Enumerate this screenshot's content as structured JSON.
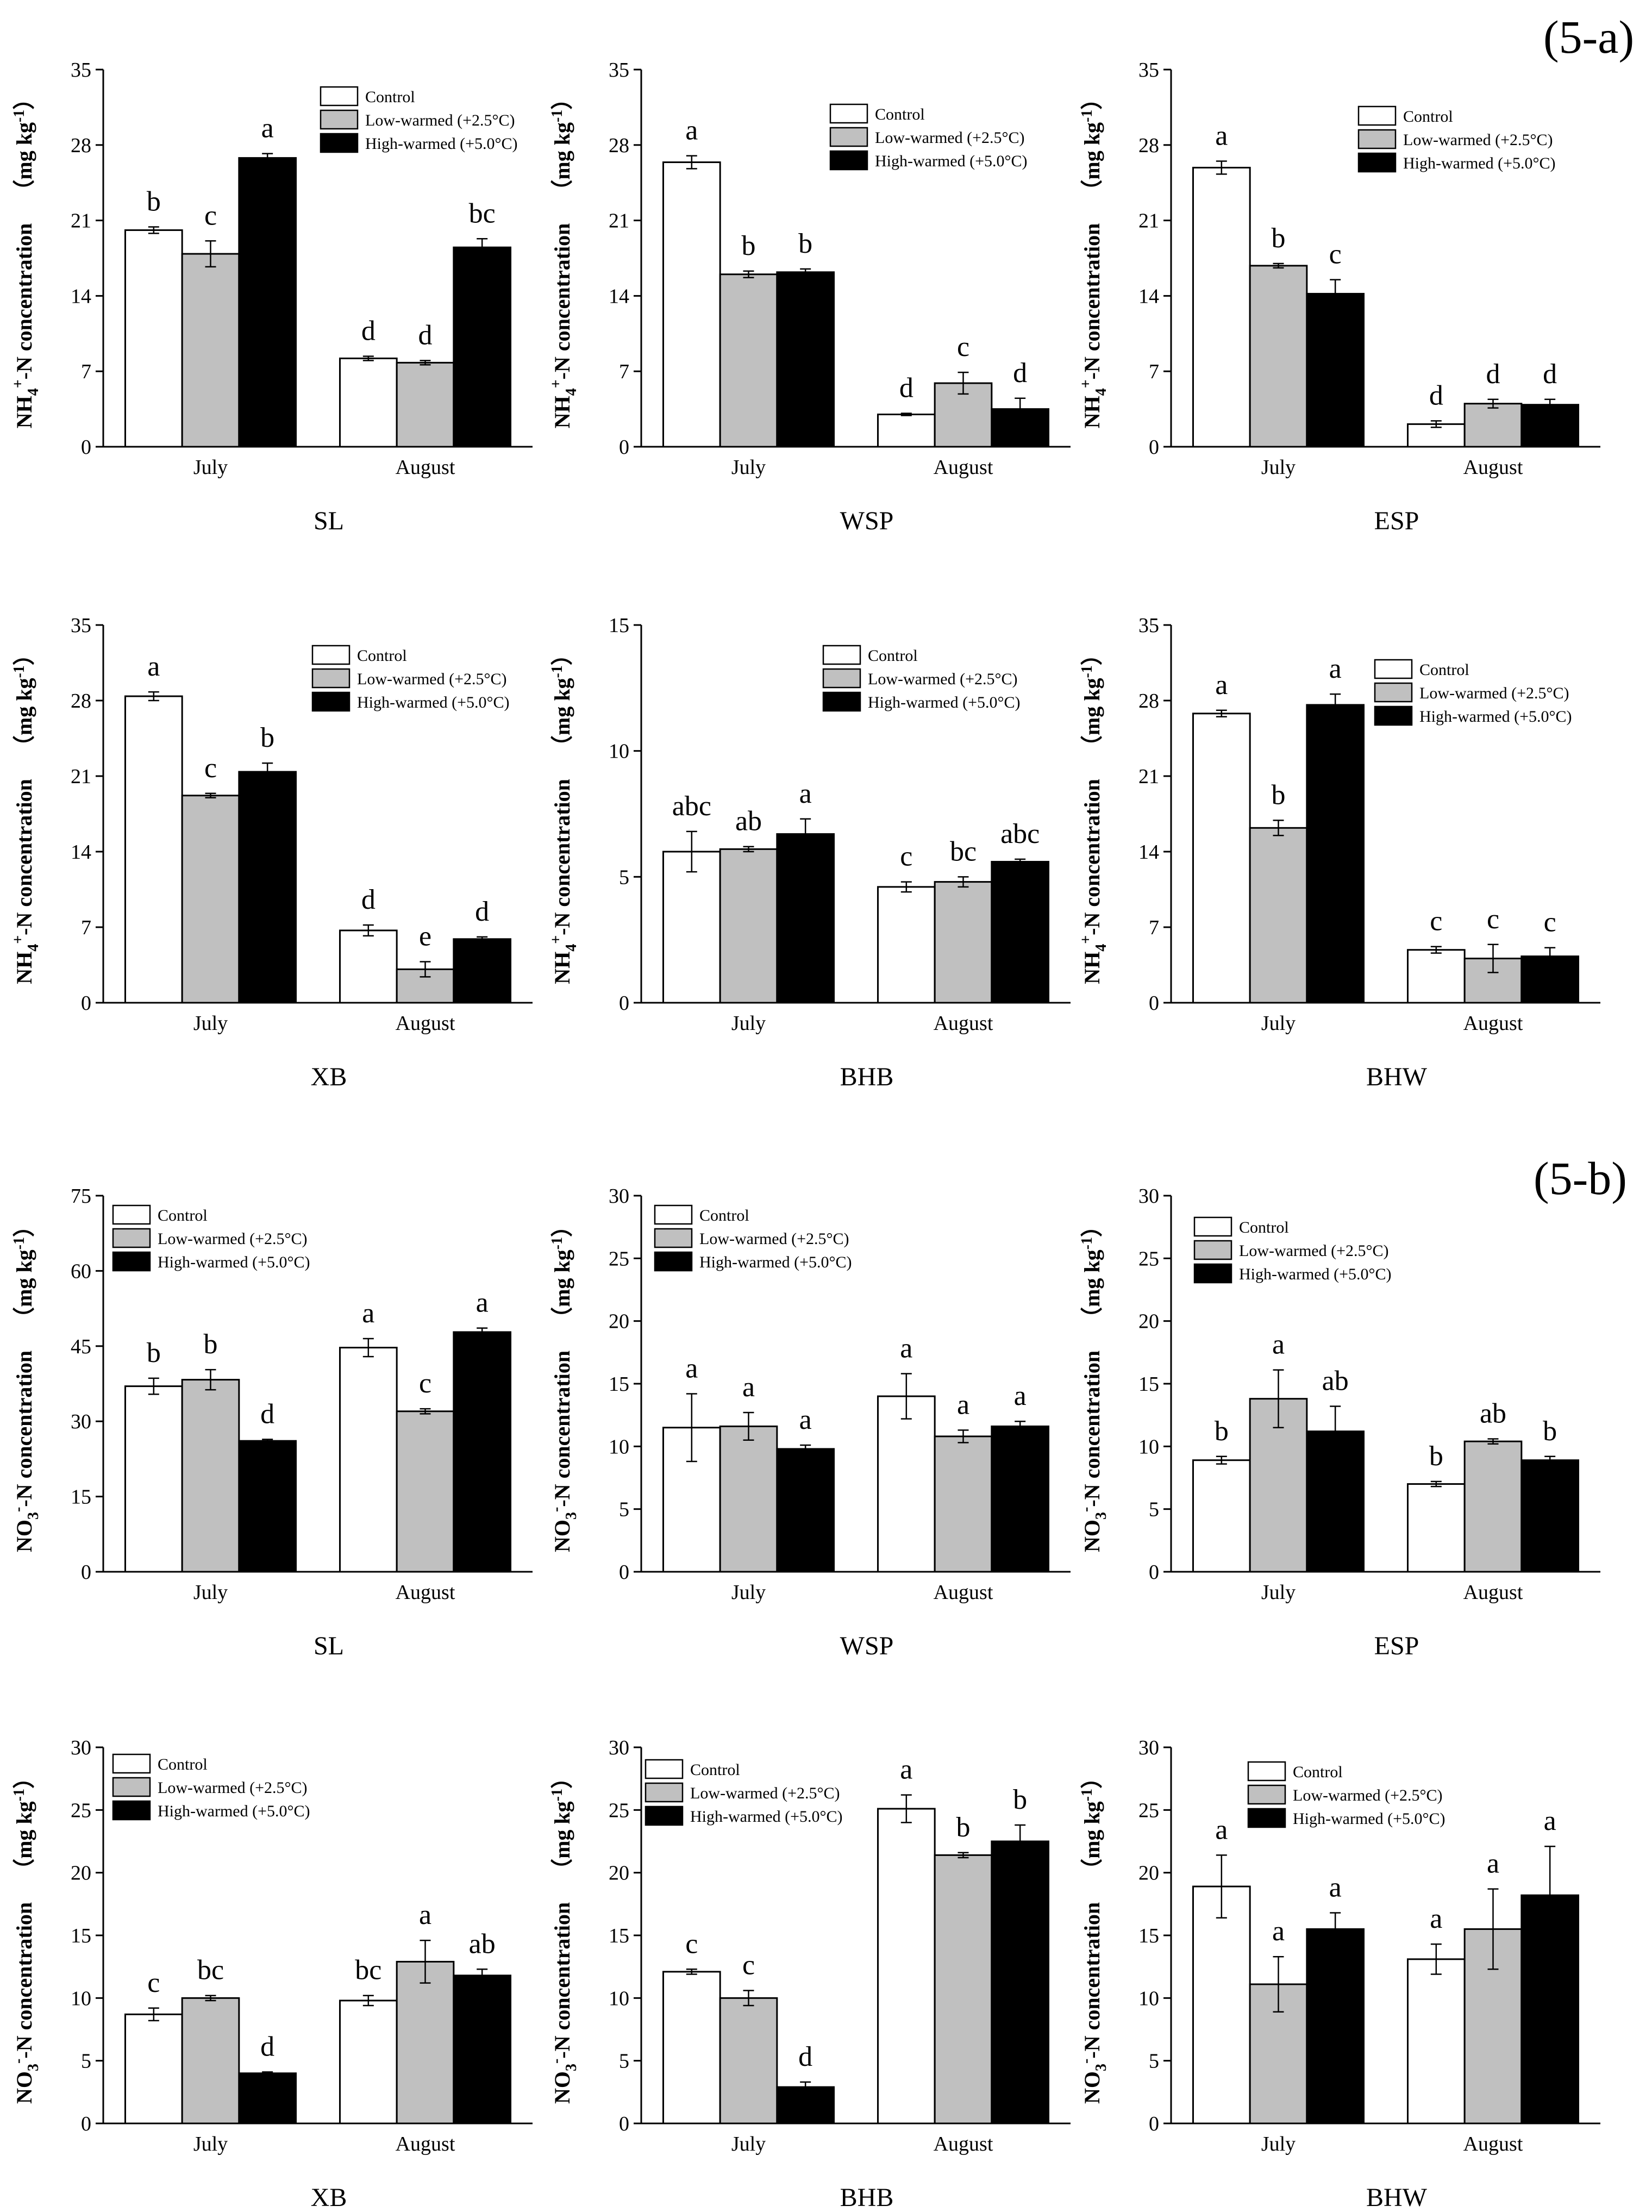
{
  "legend_items": [
    {
      "label": "Control",
      "color": "#ffffff"
    },
    {
      "label": "Low-warmed (+2.5°C)",
      "color": "#c0c0c0"
    },
    {
      "label": "High-warmed (+5.0°C)",
      "color": "#000000"
    }
  ],
  "section_labels": {
    "a": "(5-a)",
    "b": "(5-b)"
  },
  "chart_data": [
    {
      "type": "bar",
      "title": "SL",
      "ylabel": "NH4+-N concentration (mg kg-1)",
      "ylim": [
        0,
        35
      ],
      "yticks": [
        0,
        7,
        14,
        21,
        28,
        35
      ],
      "categories": [
        "July",
        "August"
      ],
      "series": [
        {
          "name": "Control",
          "values": [
            20.1,
            8.2
          ],
          "errors": [
            0.3,
            0.2
          ],
          "letters": [
            "b",
            "d"
          ]
        },
        {
          "name": "Low-warmed (+2.5°C)",
          "values": [
            17.9,
            7.8
          ],
          "errors": [
            1.2,
            0.2
          ],
          "letters": [
            "c",
            "d"
          ]
        },
        {
          "name": "High-warmed (+5.0°C)",
          "values": [
            26.8,
            18.5
          ],
          "errors": [
            0.4,
            0.8
          ],
          "letters": [
            "a",
            "bc"
          ]
        }
      ]
    },
    {
      "type": "bar",
      "title": "WSP",
      "ylabel": "NH4+-N concentration (mg kg-1)",
      "ylim": [
        0,
        35
      ],
      "yticks": [
        0,
        7,
        14,
        21,
        28,
        35
      ],
      "categories": [
        "July",
        "August"
      ],
      "series": [
        {
          "name": "Control",
          "values": [
            26.4,
            3.0
          ],
          "errors": [
            0.6,
            0.1
          ],
          "letters": [
            "a",
            "d"
          ]
        },
        {
          "name": "Low-warmed (+2.5°C)",
          "values": [
            16.0,
            5.9
          ],
          "errors": [
            0.3,
            1.0
          ],
          "letters": [
            "b",
            "c"
          ]
        },
        {
          "name": "High-warmed (+5.0°C)",
          "values": [
            16.2,
            3.5
          ],
          "errors": [
            0.3,
            1.0
          ],
          "letters": [
            "b",
            "d"
          ]
        }
      ]
    },
    {
      "type": "bar",
      "title": "ESP",
      "ylabel": "NH4+-N concentration (mg kg-1)",
      "ylim": [
        0,
        35
      ],
      "yticks": [
        0,
        7,
        14,
        21,
        28,
        35
      ],
      "categories": [
        "July",
        "August"
      ],
      "series": [
        {
          "name": "Control",
          "values": [
            25.9,
            2.1
          ],
          "errors": [
            0.6,
            0.3
          ],
          "letters": [
            "a",
            "d"
          ]
        },
        {
          "name": "Low-warmed (+2.5°C)",
          "values": [
            16.8,
            4.0
          ],
          "errors": [
            0.2,
            0.4
          ],
          "letters": [
            "b",
            "d"
          ]
        },
        {
          "name": "High-warmed (+5.0°C)",
          "values": [
            14.2,
            3.9
          ],
          "errors": [
            1.3,
            0.5
          ],
          "letters": [
            "c",
            "d"
          ]
        }
      ]
    },
    {
      "type": "bar",
      "title": "XB",
      "ylabel": "NH4+-N concentration (mg kg-1)",
      "ylim": [
        0,
        35
      ],
      "yticks": [
        0,
        7,
        14,
        21,
        28,
        35
      ],
      "categories": [
        "July",
        "August"
      ],
      "series": [
        {
          "name": "Control",
          "values": [
            28.4,
            6.7
          ],
          "errors": [
            0.4,
            0.5
          ],
          "letters": [
            "a",
            "d"
          ]
        },
        {
          "name": "Low-warmed (+2.5°C)",
          "values": [
            19.2,
            3.1
          ],
          "errors": [
            0.2,
            0.7
          ],
          "letters": [
            "c",
            "e"
          ]
        },
        {
          "name": "High-warmed (+5.0°C)",
          "values": [
            21.4,
            5.9
          ],
          "errors": [
            0.8,
            0.2
          ],
          "letters": [
            "b",
            "d"
          ]
        }
      ]
    },
    {
      "type": "bar",
      "title": "BHB",
      "ylabel": "NH4+-N concentration (mg kg-1)",
      "ylim": [
        0,
        15
      ],
      "yticks": [
        0,
        5,
        10,
        15
      ],
      "categories": [
        "July",
        "August"
      ],
      "series": [
        {
          "name": "Control",
          "values": [
            6.0,
            4.6
          ],
          "errors": [
            0.8,
            0.2
          ],
          "letters": [
            "abc",
            "c"
          ]
        },
        {
          "name": "Low-warmed (+2.5°C)",
          "values": [
            6.1,
            4.8
          ],
          "errors": [
            0.1,
            0.2
          ],
          "letters": [
            "ab",
            "bc"
          ]
        },
        {
          "name": "High-warmed (+5.0°C)",
          "values": [
            6.7,
            5.6
          ],
          "errors": [
            0.6,
            0.1
          ],
          "letters": [
            "a",
            "abc"
          ]
        }
      ]
    },
    {
      "type": "bar",
      "title": "BHW",
      "ylabel": "NH4+-N concentration (mg kg-1)",
      "ylim": [
        0,
        35
      ],
      "yticks": [
        0,
        7,
        14,
        21,
        28,
        35
      ],
      "categories": [
        "July",
        "August"
      ],
      "series": [
        {
          "name": "Control",
          "values": [
            26.8,
            4.9
          ],
          "errors": [
            0.3,
            0.3
          ],
          "letters": [
            "a",
            "c"
          ]
        },
        {
          "name": "Low-warmed (+2.5°C)",
          "values": [
            16.2,
            4.1
          ],
          "errors": [
            0.7,
            1.3
          ],
          "letters": [
            "b",
            "c"
          ]
        },
        {
          "name": "High-warmed (+5.0°C)",
          "values": [
            27.6,
            4.3
          ],
          "errors": [
            1.0,
            0.8
          ],
          "letters": [
            "a",
            "c"
          ]
        }
      ]
    },
    {
      "type": "bar",
      "title": "SL",
      "ylabel": "NO3--N concentration (mg kg-1)",
      "ylim": [
        0,
        75
      ],
      "yticks": [
        0,
        15,
        30,
        45,
        60,
        75
      ],
      "categories": [
        "July",
        "August"
      ],
      "series": [
        {
          "name": "Control",
          "values": [
            37.0,
            44.7
          ],
          "errors": [
            1.6,
            1.8
          ],
          "letters": [
            "b",
            "a"
          ]
        },
        {
          "name": "Low-warmed (+2.5°C)",
          "values": [
            38.3,
            32.0
          ],
          "errors": [
            2.0,
            0.5
          ],
          "letters": [
            "b",
            "c"
          ]
        },
        {
          "name": "High-warmed (+5.0°C)",
          "values": [
            26.1,
            47.8
          ],
          "errors": [
            0.3,
            0.8
          ],
          "letters": [
            "d",
            "a"
          ]
        }
      ]
    },
    {
      "type": "bar",
      "title": "WSP",
      "ylabel": "NO3--N concentration (mg kg-1)",
      "ylim": [
        0,
        30
      ],
      "yticks": [
        0,
        5,
        10,
        15,
        20,
        25,
        30
      ],
      "categories": [
        "July",
        "August"
      ],
      "series": [
        {
          "name": "Control",
          "values": [
            11.5,
            14.0
          ],
          "errors": [
            2.7,
            1.8
          ],
          "letters": [
            "a",
            "a"
          ]
        },
        {
          "name": "Low-warmed (+2.5°C)",
          "values": [
            11.6,
            10.8
          ],
          "errors": [
            1.1,
            0.5
          ],
          "letters": [
            "a",
            "a"
          ]
        },
        {
          "name": "High-warmed (+5.0°C)",
          "values": [
            9.8,
            11.6
          ],
          "errors": [
            0.3,
            0.4
          ],
          "letters": [
            "a",
            "a"
          ]
        }
      ]
    },
    {
      "type": "bar",
      "title": "ESP",
      "ylabel": "NO3--N concentration (mg kg-1)",
      "ylim": [
        0,
        30
      ],
      "yticks": [
        0,
        5,
        10,
        15,
        20,
        25,
        30
      ],
      "categories": [
        "July",
        "August"
      ],
      "series": [
        {
          "name": "Control",
          "values": [
            8.9,
            7.0
          ],
          "errors": [
            0.3,
            0.2
          ],
          "letters": [
            "b",
            "b"
          ]
        },
        {
          "name": "Low-warmed (+2.5°C)",
          "values": [
            13.8,
            10.4
          ],
          "errors": [
            2.3,
            0.2
          ],
          "letters": [
            "a",
            "ab"
          ]
        },
        {
          "name": "High-warmed (+5.0°C)",
          "values": [
            11.2,
            8.9
          ],
          "errors": [
            2.0,
            0.3
          ],
          "letters": [
            "ab",
            "b"
          ]
        }
      ]
    },
    {
      "type": "bar",
      "title": "XB",
      "ylabel": "NO3--N concentration (mg kg-1)",
      "ylim": [
        0,
        30
      ],
      "yticks": [
        0,
        5,
        10,
        15,
        20,
        25,
        30
      ],
      "categories": [
        "July",
        "August"
      ],
      "series": [
        {
          "name": "Control",
          "values": [
            8.7,
            9.8
          ],
          "errors": [
            0.5,
            0.4
          ],
          "letters": [
            "c",
            "bc"
          ]
        },
        {
          "name": "Low-warmed (+2.5°C)",
          "values": [
            10.0,
            12.9
          ],
          "errors": [
            0.2,
            1.7
          ],
          "letters": [
            "bc",
            "a"
          ]
        },
        {
          "name": "High-warmed (+5.0°C)",
          "values": [
            4.0,
            11.8
          ],
          "errors": [
            0.1,
            0.5
          ],
          "letters": [
            "d",
            "ab"
          ]
        }
      ]
    },
    {
      "type": "bar",
      "title": "BHB",
      "ylabel": "NO3--N concentration (mg kg-1)",
      "ylim": [
        0,
        30
      ],
      "yticks": [
        0,
        5,
        10,
        15,
        20,
        25,
        30
      ],
      "categories": [
        "July",
        "August"
      ],
      "series": [
        {
          "name": "Control",
          "values": [
            12.1,
            25.1
          ],
          "errors": [
            0.2,
            1.1
          ],
          "letters": [
            "c",
            "a"
          ]
        },
        {
          "name": "Low-warmed (+2.5°C)",
          "values": [
            10.0,
            21.4
          ],
          "errors": [
            0.6,
            0.2
          ],
          "letters": [
            "c",
            "b"
          ]
        },
        {
          "name": "High-warmed (+5.0°C)",
          "values": [
            2.9,
            22.5
          ],
          "errors": [
            0.4,
            1.3
          ],
          "letters": [
            "d",
            "b"
          ]
        }
      ]
    },
    {
      "type": "bar",
      "title": "BHW",
      "ylabel": "NO3--N concentration (mg kg-1)",
      "ylim": [
        0,
        30
      ],
      "yticks": [
        0,
        5,
        10,
        15,
        20,
        25,
        30
      ],
      "categories": [
        "July",
        "August"
      ],
      "series": [
        {
          "name": "Control",
          "values": [
            18.9,
            13.1
          ],
          "errors": [
            2.5,
            1.2
          ],
          "letters": [
            "a",
            "a"
          ]
        },
        {
          "name": "Low-warmed (+2.5°C)",
          "values": [
            11.1,
            15.5
          ],
          "errors": [
            2.2,
            3.2
          ],
          "letters": [
            "a",
            "a"
          ]
        },
        {
          "name": "High-warmed (+5.0°C)",
          "values": [
            15.5,
            18.2
          ],
          "errors": [
            1.3,
            3.9
          ],
          "letters": [
            "a",
            "a"
          ]
        }
      ]
    }
  ]
}
